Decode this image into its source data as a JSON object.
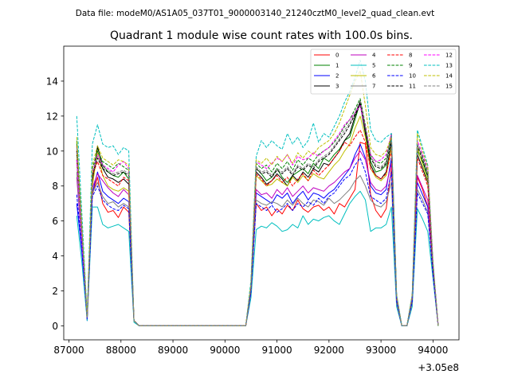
{
  "figure": {
    "suptitle": "Data file: modeM0/AS1A05_037T01_9000003140_21240cztM0_level2_quad_clean.evt",
    "title": "Quadrant 1 module wise count rates with 100.0s bins.",
    "x_offset_label": "+3.05e8"
  },
  "chart_data": {
    "type": "line",
    "title": "Quadrant 1 module wise count rates with 100.0s bins.",
    "xlabel": "",
    "ylabel": "",
    "x_offset": 305000000,
    "xlim": [
      86900,
      94500
    ],
    "ylim": [
      -0.8,
      16.0
    ],
    "xticks": [
      87000,
      88000,
      89000,
      90000,
      91000,
      92000,
      93000,
      94000
    ],
    "xtick_labels": [
      "87000",
      "88000",
      "89000",
      "90000",
      "91000",
      "92000",
      "93000",
      "94000"
    ],
    "yticks": [
      0,
      2,
      4,
      6,
      8,
      10,
      12,
      14
    ],
    "ytick_labels": [
      "0",
      "2",
      "4",
      "6",
      "8",
      "10",
      "12",
      "14"
    ],
    "grid": false,
    "legend_placement": "upper right",
    "x": [
      87150,
      87250,
      87350,
      87450,
      87550,
      87650,
      87750,
      87850,
      87950,
      88050,
      88150,
      88250,
      88350,
      88450,
      90400,
      90500,
      90600,
      90700,
      90800,
      90900,
      91000,
      91100,
      91200,
      91300,
      91400,
      91500,
      91600,
      91700,
      91800,
      91900,
      92000,
      92100,
      92200,
      92300,
      92400,
      92500,
      92600,
      92700,
      92800,
      92900,
      93000,
      93100,
      93200,
      93300,
      93400,
      93500,
      93600,
      93700,
      93800,
      93900,
      94000,
      94100
    ],
    "series": [
      {
        "name": "0",
        "color": "#ff0000",
        "dash": "solid",
        "values": [
          10.0,
          5.0,
          0.5,
          7.5,
          8.5,
          7.0,
          6.5,
          6.6,
          6.2,
          6.8,
          6.5,
          0.3,
          0.0,
          0.0,
          0.0,
          2.0,
          7.0,
          6.6,
          6.8,
          6.3,
          6.7,
          6.4,
          6.9,
          6.6,
          7.2,
          6.7,
          6.5,
          6.8,
          6.9,
          6.6,
          6.8,
          6.4,
          7.0,
          6.8,
          7.3,
          7.8,
          10.5,
          10.4,
          7.5,
          6.6,
          6.2,
          6.7,
          9.0,
          1.5,
          0.0,
          0.0,
          1.5,
          8.5,
          7.8,
          6.8,
          3.2,
          0.0
        ]
      },
      {
        "name": "1",
        "color": "#008000",
        "dash": "solid",
        "values": [
          10.5,
          5.3,
          0.5,
          8.3,
          10.2,
          9.2,
          8.8,
          8.6,
          8.5,
          8.8,
          8.4,
          0.3,
          0.0,
          0.0,
          0.0,
          2.3,
          9.0,
          8.7,
          8.3,
          8.5,
          9.0,
          8.5,
          8.2,
          8.6,
          8.8,
          9.0,
          8.7,
          9.3,
          9.0,
          9.6,
          9.4,
          9.8,
          10.1,
          10.6,
          10.8,
          11.8,
          12.8,
          11.2,
          9.4,
          8.8,
          8.9,
          9.2,
          11.0,
          1.7,
          0.0,
          0.0,
          1.7,
          10.0,
          9.4,
          8.5,
          3.5,
          0.0
        ]
      },
      {
        "name": "2",
        "color": "#0000ff",
        "dash": "solid",
        "values": [
          7.0,
          4.2,
          0.3,
          7.6,
          8.8,
          7.7,
          7.4,
          7.2,
          7.0,
          7.3,
          7.1,
          0.3,
          0.0,
          0.0,
          0.0,
          2.0,
          7.6,
          7.4,
          7.2,
          7.0,
          7.5,
          7.3,
          7.6,
          7.0,
          7.4,
          7.7,
          7.2,
          7.6,
          7.5,
          7.3,
          7.6,
          7.8,
          8.2,
          8.6,
          9.0,
          9.8,
          10.4,
          9.6,
          8.0,
          7.6,
          7.5,
          7.8,
          9.6,
          1.4,
          0.0,
          0.0,
          1.4,
          8.2,
          7.5,
          6.8,
          3.0,
          0.0
        ]
      },
      {
        "name": "3",
        "color": "#000000",
        "dash": "solid",
        "values": [
          9.5,
          5.0,
          0.5,
          8.2,
          10.3,
          9.0,
          8.5,
          8.4,
          8.2,
          8.4,
          8.1,
          0.3,
          0.0,
          0.0,
          0.0,
          2.2,
          8.8,
          8.5,
          8.1,
          8.3,
          8.7,
          8.4,
          8.0,
          8.6,
          8.3,
          8.8,
          8.5,
          9.0,
          8.8,
          9.3,
          9.2,
          9.6,
          10.0,
          10.6,
          11.0,
          12.0,
          12.7,
          11.0,
          9.2,
          8.6,
          8.4,
          8.8,
          10.5,
          1.6,
          0.0,
          0.0,
          1.6,
          9.8,
          9.0,
          8.2,
          3.4,
          0.0
        ]
      },
      {
        "name": "4",
        "color": "#bf00bf",
        "dash": "solid",
        "values": [
          8.5,
          4.6,
          0.4,
          7.9,
          8.7,
          8.3,
          7.9,
          7.6,
          7.4,
          7.8,
          7.5,
          0.3,
          0.0,
          0.0,
          0.0,
          2.1,
          7.8,
          7.5,
          7.6,
          7.3,
          7.8,
          7.5,
          7.9,
          7.4,
          7.7,
          8.0,
          7.6,
          7.9,
          7.8,
          7.7,
          8.0,
          8.2,
          8.5,
          8.8,
          9.0,
          9.6,
          10.0,
          9.5,
          8.2,
          7.8,
          7.7,
          8.0,
          9.3,
          1.5,
          0.0,
          0.0,
          1.5,
          8.6,
          7.9,
          7.2,
          3.1,
          0.0
        ]
      },
      {
        "name": "5",
        "color": "#00bfbf",
        "dash": "solid",
        "values": [
          6.3,
          3.6,
          0.3,
          6.8,
          6.8,
          5.8,
          5.6,
          5.7,
          5.8,
          5.6,
          5.4,
          0.2,
          0.0,
          0.0,
          0.0,
          1.6,
          5.5,
          5.7,
          5.6,
          5.9,
          5.7,
          5.4,
          5.5,
          5.8,
          5.6,
          6.3,
          5.8,
          6.1,
          6.0,
          6.2,
          6.3,
          6.0,
          5.8,
          6.4,
          7.0,
          7.4,
          7.7,
          7.2,
          5.4,
          5.6,
          5.6,
          5.8,
          6.8,
          1.1,
          0.0,
          0.0,
          1.1,
          6.7,
          6.1,
          5.4,
          2.7,
          0.0
        ]
      },
      {
        "name": "6",
        "color": "#bfbf00",
        "dash": "solid",
        "values": [
          9.8,
          5.2,
          0.5,
          8.0,
          10.0,
          8.6,
          8.0,
          7.8,
          7.7,
          7.9,
          7.7,
          0.3,
          0.0,
          0.0,
          0.0,
          2.2,
          8.6,
          8.3,
          8.0,
          8.1,
          8.4,
          8.2,
          8.0,
          8.5,
          8.2,
          8.6,
          8.3,
          8.7,
          8.5,
          8.4,
          8.8,
          9.2,
          9.5,
          10.0,
          10.4,
          11.3,
          12.0,
          10.8,
          9.0,
          8.5,
          8.3,
          8.6,
          10.2,
          1.6,
          0.0,
          0.0,
          1.6,
          10.2,
          9.2,
          8.3,
          3.4,
          0.0
        ]
      },
      {
        "name": "7",
        "color": "#808080",
        "dash": "solid",
        "values": [
          8.8,
          4.8,
          0.4,
          7.6,
          8.2,
          7.4,
          7.0,
          7.1,
          6.8,
          7.0,
          6.8,
          0.3,
          0.0,
          0.0,
          0.0,
          1.9,
          7.2,
          7.0,
          6.9,
          7.1,
          7.0,
          6.8,
          7.2,
          6.9,
          7.3,
          7.0,
          6.8,
          7.2,
          7.1,
          6.9,
          7.3,
          7.0,
          7.2,
          7.5,
          7.8,
          8.3,
          8.6,
          8.0,
          7.2,
          6.9,
          6.8,
          7.1,
          8.2,
          1.3,
          0.0,
          0.0,
          1.3,
          7.8,
          7.2,
          6.5,
          3.0,
          0.0
        ]
      },
      {
        "name": "8",
        "color": "#ff0000",
        "dash": "dashed",
        "values": [
          10.3,
          5.4,
          0.5,
          8.6,
          9.4,
          8.6,
          8.4,
          8.2,
          8.0,
          8.5,
          8.3,
          0.3,
          0.0,
          0.0,
          0.0,
          2.2,
          8.7,
          8.4,
          8.0,
          8.3,
          8.6,
          8.2,
          8.5,
          8.0,
          8.4,
          8.7,
          8.3,
          8.9,
          8.6,
          8.9,
          9.2,
          9.6,
          10.0,
          10.5,
          10.3,
          10.8,
          11.2,
          10.5,
          9.0,
          8.6,
          8.4,
          8.7,
          10.0,
          1.6,
          0.0,
          0.0,
          1.6,
          9.6,
          8.8,
          8.0,
          3.3,
          0.0
        ]
      },
      {
        "name": "9",
        "color": "#008000",
        "dash": "dashed",
        "values": [
          10.6,
          5.6,
          0.5,
          9.0,
          10.0,
          9.4,
          9.2,
          9.0,
          9.3,
          9.1,
          8.9,
          0.3,
          0.0,
          0.0,
          0.0,
          2.3,
          9.3,
          9.0,
          9.2,
          8.8,
          9.3,
          9.0,
          9.4,
          8.9,
          9.5,
          9.2,
          9.6,
          9.4,
          9.8,
          10.0,
          10.2,
          10.5,
          10.9,
          11.4,
          11.8,
          12.4,
          13.0,
          11.5,
          9.8,
          9.4,
          9.3,
          9.6,
          10.8,
          1.7,
          0.0,
          0.0,
          1.7,
          10.4,
          9.7,
          8.8,
          3.5,
          0.0
        ]
      },
      {
        "name": "10",
        "color": "#0000ff",
        "dash": "dashed",
        "values": [
          7.5,
          4.4,
          0.4,
          7.4,
          8.0,
          7.2,
          6.9,
          6.7,
          6.6,
          6.9,
          6.7,
          0.3,
          0.0,
          0.0,
          0.0,
          1.9,
          7.0,
          6.8,
          6.6,
          6.9,
          6.5,
          6.7,
          7.0,
          6.6,
          7.0,
          6.8,
          7.1,
          6.9,
          7.3,
          7.0,
          7.4,
          7.6,
          8.0,
          8.4,
          8.6,
          9.2,
          9.6,
          8.8,
          7.4,
          7.2,
          7.0,
          7.3,
          8.8,
          1.4,
          0.0,
          0.0,
          1.4,
          7.6,
          7.0,
          6.4,
          2.9,
          0.0
        ]
      },
      {
        "name": "11",
        "color": "#000000",
        "dash": "dashed",
        "values": [
          10.0,
          5.3,
          0.5,
          8.6,
          9.6,
          9.0,
          8.8,
          8.6,
          8.7,
          8.8,
          8.6,
          0.3,
          0.0,
          0.0,
          0.0,
          2.2,
          9.0,
          8.7,
          8.8,
          8.5,
          8.9,
          8.7,
          9.0,
          8.6,
          9.1,
          8.9,
          9.2,
          9.0,
          9.4,
          9.6,
          9.8,
          10.2,
          10.6,
          11.0,
          11.5,
          12.1,
          12.8,
          11.3,
          9.6,
          9.1,
          9.0,
          9.3,
          10.6,
          1.7,
          0.0,
          0.0,
          1.7,
          10.3,
          9.5,
          8.6,
          3.4,
          0.0
        ]
      },
      {
        "name": "12",
        "color": "#ff00ff",
        "dash": "dashed",
        "values": [
          9.5,
          5.0,
          0.5,
          8.8,
          9.8,
          9.2,
          9.0,
          8.8,
          9.2,
          9.4,
          9.0,
          0.3,
          0.0,
          0.0,
          0.0,
          2.3,
          9.4,
          9.2,
          9.0,
          9.3,
          9.6,
          9.4,
          9.8,
          9.2,
          9.7,
          9.5,
          9.6,
          9.9,
          9.7,
          10.0,
          10.2,
          10.6,
          11.0,
          11.5,
          11.8,
          12.2,
          12.6,
          11.4,
          9.8,
          9.4,
          9.5,
          9.8,
          11.0,
          1.7,
          0.0,
          0.0,
          1.7,
          10.6,
          9.8,
          9.0,
          3.6,
          0.0
        ]
      },
      {
        "name": "13",
        "color": "#00bfbf",
        "dash": "dashed",
        "values": [
          12.0,
          6.4,
          0.6,
          10.4,
          11.5,
          10.4,
          10.2,
          10.3,
          9.8,
          10.2,
          10.0,
          0.3,
          0.0,
          0.0,
          0.0,
          2.6,
          9.7,
          10.6,
          10.2,
          10.6,
          10.3,
          10.1,
          11.0,
          10.4,
          10.8,
          10.2,
          10.6,
          11.6,
          10.5,
          11.0,
          10.8,
          11.4,
          12.0,
          12.8,
          13.4,
          14.2,
          15.2,
          14.0,
          11.2,
          10.6,
          10.5,
          10.8,
          11.0,
          1.8,
          0.0,
          0.0,
          1.8,
          11.2,
          10.2,
          9.2,
          3.7,
          0.0
        ]
      },
      {
        "name": "14",
        "color": "#bfbf00",
        "dash": "dashed",
        "values": [
          10.8,
          5.7,
          0.5,
          9.2,
          10.3,
          9.6,
          9.4,
          9.2,
          9.5,
          9.4,
          9.2,
          0.3,
          0.0,
          0.0,
          0.0,
          2.4,
          9.5,
          9.3,
          9.6,
          9.2,
          9.7,
          9.4,
          9.8,
          9.3,
          9.9,
          9.6,
          10.0,
          9.8,
          10.2,
          10.4,
          10.6,
          11.0,
          11.6,
          12.4,
          13.2,
          14.0,
          14.6,
          12.6,
          10.2,
          9.8,
          9.7,
          10.0,
          10.8,
          1.8,
          0.0,
          0.0,
          1.8,
          11.0,
          10.0,
          9.1,
          3.6,
          0.0
        ]
      },
      {
        "name": "15",
        "color": "#808080",
        "dash": "dashed",
        "values": [
          10.2,
          5.4,
          0.5,
          8.7,
          9.7,
          9.1,
          8.9,
          8.7,
          8.8,
          8.9,
          8.7,
          0.3,
          0.0,
          0.0,
          0.0,
          2.2,
          9.1,
          8.8,
          8.9,
          8.6,
          9.0,
          8.8,
          9.1,
          8.7,
          9.2,
          9.0,
          9.3,
          9.1,
          9.5,
          9.7,
          9.9,
          10.3,
          10.7,
          11.2,
          11.6,
          12.2,
          12.9,
          11.4,
          9.7,
          9.2,
          9.1,
          9.4,
          10.7,
          1.7,
          0.0,
          0.0,
          1.7,
          10.4,
          9.6,
          8.7,
          3.5,
          0.0
        ]
      }
    ]
  }
}
